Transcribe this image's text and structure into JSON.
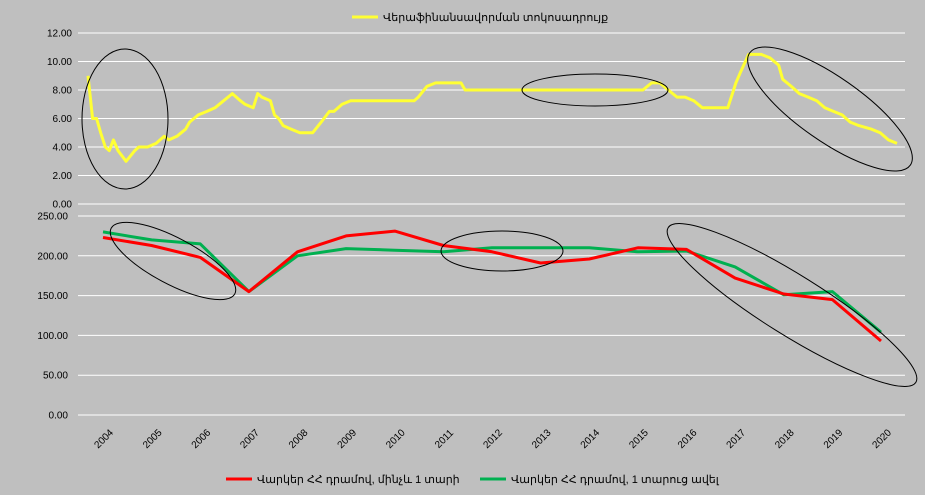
{
  "colors": {
    "background": "#bfbfbf",
    "refinancing": "#ffff33",
    "loans_short": "#ff0000",
    "loans_long": "#00b050",
    "grid": "#ffffff",
    "ellipse": "#000000"
  },
  "chart_data": [
    {
      "type": "line",
      "title": "",
      "legend": {
        "position": "top",
        "label": "Վերաֆինանսավորման տոկոսադրույք"
      },
      "ylim": [
        0,
        12
      ],
      "yticks": [
        "12.00",
        "10.00",
        "8.00",
        "6.00",
        "4.00",
        "2.00",
        "0.00"
      ],
      "xlim": [
        2003.8,
        2020.5
      ],
      "grid": true,
      "series": [
        {
          "name": "Վերաֆինանսավորման տոկոսադրույք",
          "points": [
            [
              2003.83,
              9.0
            ],
            [
              2003.92,
              6.0
            ],
            [
              2004.0,
              6.0
            ],
            [
              2004.08,
              5.0
            ],
            [
              2004.17,
              4.0
            ],
            [
              2004.25,
              3.75
            ],
            [
              2004.33,
              4.5
            ],
            [
              2004.42,
              3.75
            ],
            [
              2004.58,
              3.0
            ],
            [
              2004.75,
              3.75
            ],
            [
              2004.83,
              4.0
            ],
            [
              2005.0,
              4.0
            ],
            [
              2005.17,
              4.25
            ],
            [
              2005.33,
              4.75
            ],
            [
              2005.42,
              4.5
            ],
            [
              2005.58,
              4.75
            ],
            [
              2005.75,
              5.25
            ],
            [
              2005.83,
              5.75
            ],
            [
              2006.0,
              6.25
            ],
            [
              2006.17,
              6.5
            ],
            [
              2006.33,
              6.75
            ],
            [
              2006.5,
              7.25
            ],
            [
              2006.67,
              7.75
            ],
            [
              2006.83,
              7.25
            ],
            [
              2006.92,
              7.0
            ],
            [
              2007.08,
              6.75
            ],
            [
              2007.17,
              7.75
            ],
            [
              2007.25,
              7.5
            ],
            [
              2007.42,
              7.25
            ],
            [
              2007.5,
              6.25
            ],
            [
              2007.58,
              6.0
            ],
            [
              2007.67,
              5.5
            ],
            [
              2007.83,
              5.25
            ],
            [
              2008.0,
              5.0
            ],
            [
              2008.17,
              5.0
            ],
            [
              2008.25,
              5.0
            ],
            [
              2008.42,
              5.75
            ],
            [
              2008.58,
              6.5
            ],
            [
              2008.67,
              6.5
            ],
            [
              2008.83,
              7.0
            ],
            [
              2009.0,
              7.25
            ],
            [
              2009.5,
              7.25
            ],
            [
              2010.0,
              7.25
            ],
            [
              2010.25,
              7.25
            ],
            [
              2010.33,
              7.5
            ],
            [
              2010.5,
              8.25
            ],
            [
              2010.67,
              8.5
            ],
            [
              2011.17,
              8.5
            ],
            [
              2011.25,
              8.0
            ],
            [
              2013.75,
              8.0
            ],
            [
              2014.75,
              8.0
            ],
            [
              2014.92,
              8.5
            ],
            [
              2015.08,
              8.5
            ],
            [
              2015.25,
              8.0
            ],
            [
              2015.42,
              7.5
            ],
            [
              2015.58,
              7.5
            ],
            [
              2015.75,
              7.25
            ],
            [
              2015.92,
              6.75
            ],
            [
              2016.25,
              6.75
            ],
            [
              2016.42,
              6.75
            ],
            [
              2016.58,
              8.5
            ],
            [
              2016.67,
              9.25
            ],
            [
              2016.83,
              10.5
            ],
            [
              2017.08,
              10.5
            ],
            [
              2017.25,
              10.25
            ],
            [
              2017.42,
              9.75
            ],
            [
              2017.5,
              8.75
            ],
            [
              2017.67,
              8.25
            ],
            [
              2017.83,
              7.75
            ],
            [
              2018.0,
              7.5
            ],
            [
              2018.17,
              7.25
            ],
            [
              2018.33,
              6.75
            ],
            [
              2018.5,
              6.5
            ],
            [
              2018.67,
              6.25
            ],
            [
              2018.83,
              5.75
            ],
            [
              2019.0,
              5.5
            ],
            [
              2019.25,
              5.25
            ],
            [
              2019.42,
              5.0
            ],
            [
              2019.58,
              4.5
            ],
            [
              2019.75,
              4.25
            ]
          ]
        }
      ]
    },
    {
      "type": "line",
      "title": "",
      "ylim": [
        0,
        250
      ],
      "yticks": [
        "250.00",
        "200.00",
        "150.00",
        "100.00",
        "50.00",
        "0.00"
      ],
      "categories": [
        "2004",
        "2005",
        "2006",
        "2007",
        "2008",
        "2009",
        "2010",
        "2011",
        "2012",
        "2013",
        "2014",
        "2015",
        "2016",
        "2017",
        "2018",
        "2019",
        "2020"
      ],
      "grid": true,
      "legend": {
        "position": "bottom"
      },
      "series": [
        {
          "name": "Վարկեր ՀՀ դրամով, մինչև 1 տարի",
          "color_key": "loans_short",
          "points": [
            [
              2003.75,
              223
            ],
            [
              2004.75,
              213
            ],
            [
              2005.75,
              198
            ],
            [
              2006.75,
              155
            ],
            [
              2007.75,
              205
            ],
            [
              2008.75,
              225
            ],
            [
              2009.75,
              231
            ],
            [
              2010.75,
              213
            ],
            [
              2011.75,
              205
            ],
            [
              2012.75,
              191
            ],
            [
              2013.75,
              196
            ],
            [
              2014.75,
              210
            ],
            [
              2015.75,
              208
            ],
            [
              2016.75,
              172
            ],
            [
              2017.75,
              152
            ],
            [
              2018.75,
              145
            ],
            [
              2019.75,
              93
            ]
          ]
        },
        {
          "name": "Վարկեր ՀՀ դրամով, 1 տարուց ավել",
          "color_key": "loans_long",
          "points": [
            [
              2003.75,
              230
            ],
            [
              2004.75,
              220
            ],
            [
              2005.75,
              215
            ],
            [
              2006.75,
              155
            ],
            [
              2007.75,
              200
            ],
            [
              2008.75,
              209
            ],
            [
              2009.75,
              207
            ],
            [
              2010.75,
              205
            ],
            [
              2011.75,
              210
            ],
            [
              2012.75,
              210
            ],
            [
              2013.75,
              210
            ],
            [
              2014.75,
              205
            ],
            [
              2015.75,
              206
            ],
            [
              2016.75,
              186
            ],
            [
              2017.75,
              151
            ],
            [
              2018.75,
              155
            ],
            [
              2019.75,
              104
            ]
          ]
        }
      ]
    }
  ]
}
